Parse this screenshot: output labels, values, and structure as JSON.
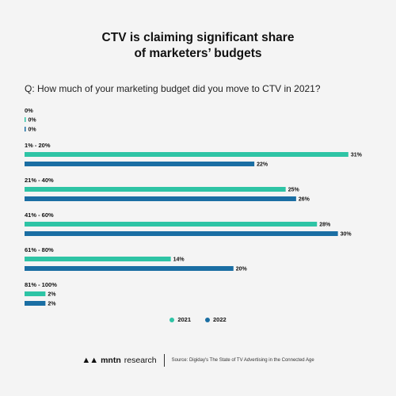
{
  "title_line1": "CTV is claiming significant share",
  "title_line2": "of marketers’ budgets",
  "question": "Q: How much of your marketing budget did you move to CTV in 2021?",
  "chart_data": {
    "type": "bar",
    "orientation": "horizontal",
    "categories": [
      "0%",
      "1% - 20%",
      "21% - 40%",
      "41% - 60%",
      "61% - 80%",
      "81% - 100%"
    ],
    "series": [
      {
        "name": "2021",
        "values": [
          0,
          31,
          25,
          28,
          14,
          2
        ]
      },
      {
        "name": "2022",
        "values": [
          0,
          22,
          26,
          30,
          20,
          2
        ]
      }
    ],
    "value_suffix": "%",
    "xlim": [
      0,
      32
    ],
    "legend_position": "bottom",
    "grid": false
  },
  "colors": {
    "2021": "#2ec4a5",
    "2022": "#1a6ea3"
  },
  "legend": {
    "label_2021": "2021",
    "label_2022": "2022"
  },
  "footer": {
    "brand_name": "mntn",
    "brand_suffix": "research",
    "logo_icon": "mntn-logo-icon",
    "source": "Source: Digiday's The State of TV Advertising in the Connected Age"
  }
}
